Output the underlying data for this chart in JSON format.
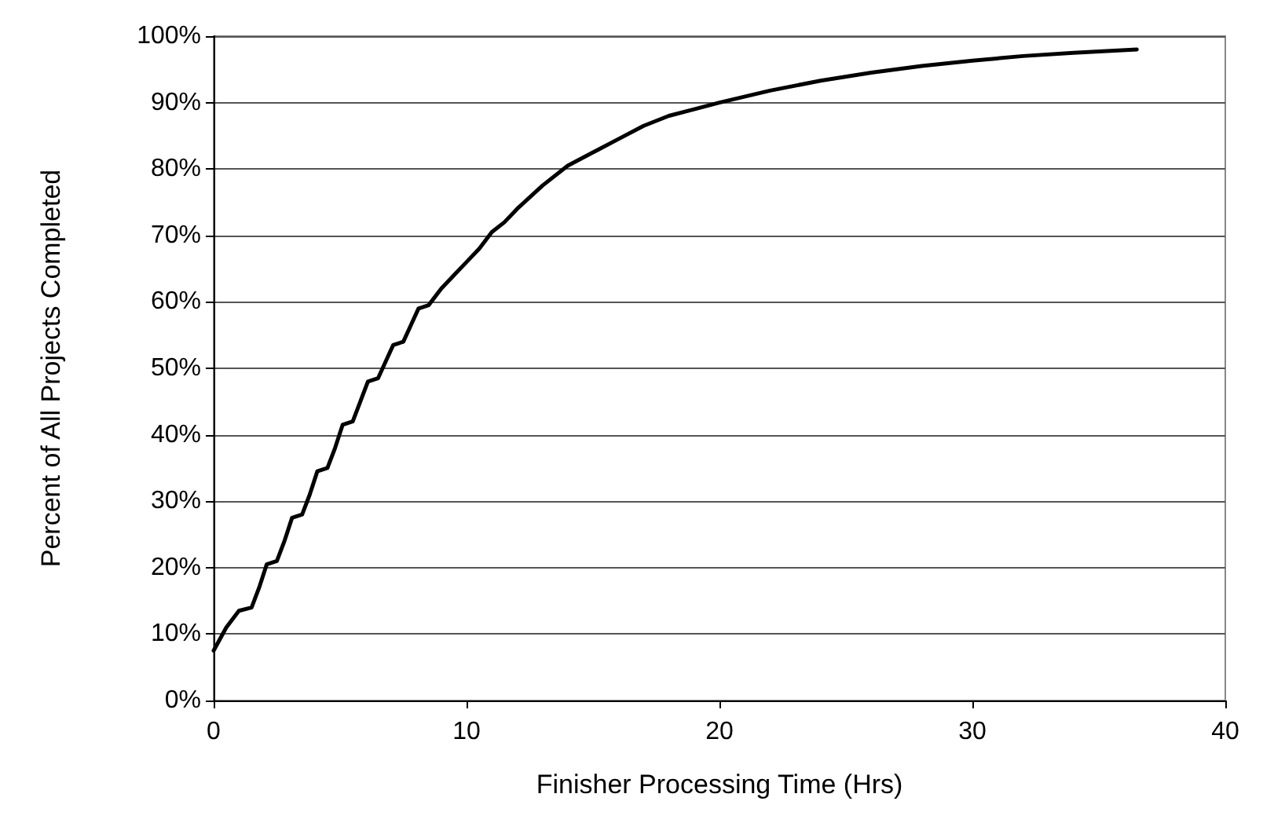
{
  "chart_data": {
    "type": "line",
    "xlabel": "Finisher Processing Time (Hrs)",
    "ylabel": "Percent of All Projects Completed",
    "x": [
      0,
      0.5,
      1,
      1.5,
      1.8,
      2.1,
      2.5,
      2.8,
      3.1,
      3.5,
      3.8,
      4.1,
      4.5,
      4.8,
      5.1,
      5.5,
      5.8,
      6.1,
      6.5,
      6.8,
      7.1,
      7.5,
      7.8,
      8.1,
      8.5,
      9,
      9.5,
      10,
      10.5,
      11,
      11.5,
      12,
      13,
      14,
      15,
      16,
      17,
      18,
      19,
      20,
      22,
      24,
      26,
      28,
      30,
      32,
      34,
      36.5
    ],
    "series": [
      {
        "color": "#000000",
        "values": [
          7.5,
          11,
          13.5,
          14,
          17,
          20.5,
          21,
          24,
          27.5,
          28,
          31,
          34.5,
          35,
          38,
          41.5,
          42,
          45,
          48,
          48.5,
          51,
          53.5,
          54,
          56.5,
          59,
          59.5,
          62,
          64,
          66,
          68,
          70.5,
          72,
          74,
          77.5,
          80.5,
          82.5,
          84.5,
          86.5,
          88,
          89,
          90,
          91.8,
          93.3,
          94.5,
          95.5,
          96.3,
          97,
          97.5,
          98
        ]
      }
    ],
    "xlim": [
      0,
      40
    ],
    "xticks": [
      0,
      10,
      20,
      30,
      40
    ],
    "ylim": [
      0,
      100
    ],
    "yticks": [
      {
        "value": 0,
        "label": "0%"
      },
      {
        "value": 10,
        "label": "10%"
      },
      {
        "value": 20,
        "label": "20%"
      },
      {
        "value": 30,
        "label": "30%"
      },
      {
        "value": 40,
        "label": "40%"
      },
      {
        "value": 50,
        "label": "50%"
      },
      {
        "value": 60,
        "label": "60%"
      },
      {
        "value": 70,
        "label": "70%"
      },
      {
        "value": 80,
        "label": "80%"
      },
      {
        "value": 90,
        "label": "90%"
      },
      {
        "value": 100,
        "label": "100%"
      }
    ],
    "grid": "y",
    "marker": "none",
    "line_style": "solid"
  }
}
